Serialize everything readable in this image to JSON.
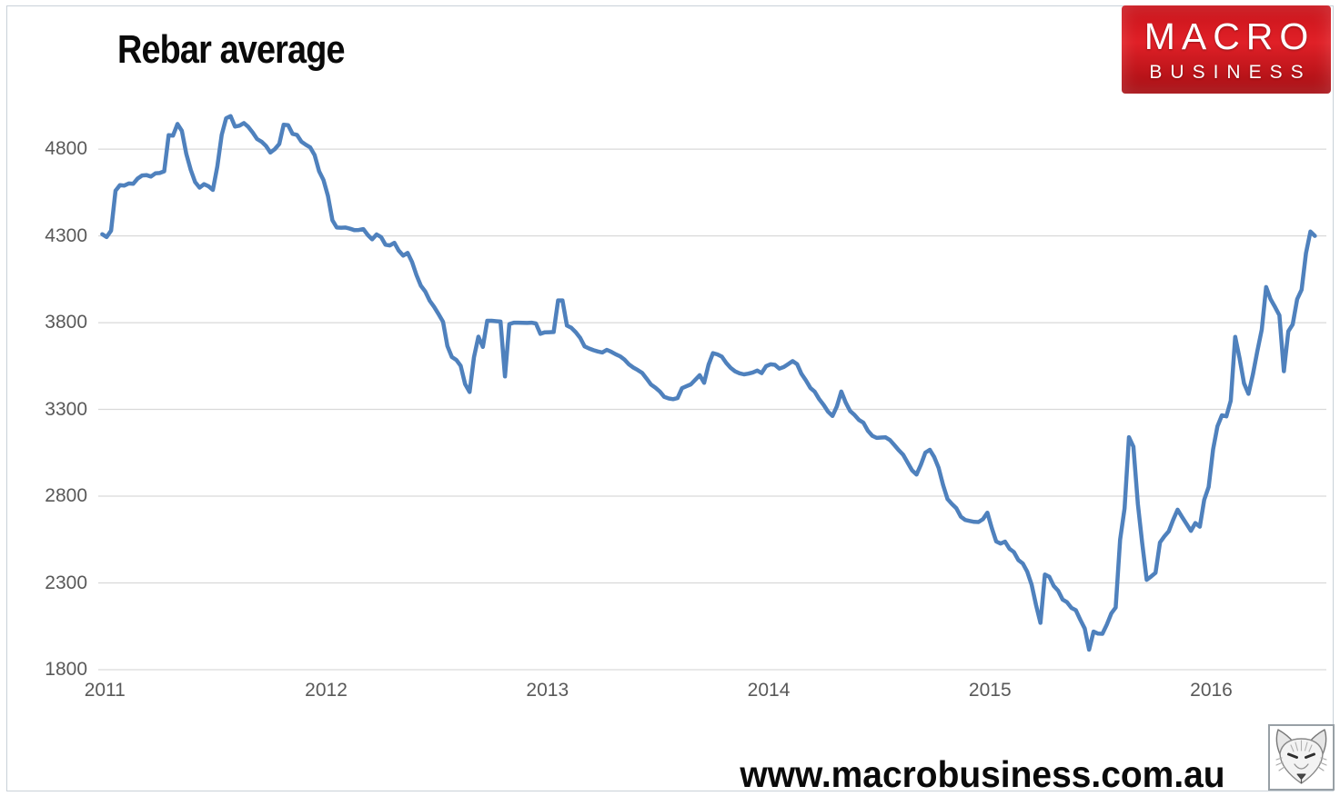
{
  "title": "Rebar average",
  "branding": {
    "logo_line1": "MACRO",
    "logo_line2": "BUSINESS",
    "url": "www.macrobusiness.com.au"
  },
  "colors": {
    "line": "#4F81BD",
    "gridline": "#D9D9D9",
    "axis_text": "#595959",
    "logo_red_top": "#c8131a",
    "logo_red_bottom": "#a50d12",
    "page_border": "#c9d1d8"
  },
  "chart_data": {
    "type": "line",
    "title": "Rebar average",
    "xlabel": "",
    "ylabel": "",
    "grid": "horizontal",
    "legend": "none",
    "x_ticks": [
      2011,
      2012,
      2013,
      2014,
      2015,
      2016
    ],
    "y_ticks": [
      1800,
      2300,
      2800,
      3300,
      3800,
      4300,
      4800
    ],
    "xlim": [
      2010.97,
      2016.52
    ],
    "ylim": [
      1800,
      5057
    ],
    "line_color": "#4F81BD",
    "line_width": 4.5,
    "series": [
      {
        "name": "Rebar average",
        "x_start": 2010.988,
        "x_step": 0.02,
        "values": [
          4310,
          4293,
          4330,
          4560,
          4592,
          4590,
          4602,
          4600,
          4630,
          4648,
          4650,
          4642,
          4660,
          4662,
          4672,
          4880,
          4878,
          4945,
          4905,
          4772,
          4680,
          4610,
          4578,
          4598,
          4586,
          4565,
          4700,
          4882,
          4978,
          4990,
          4930,
          4935,
          4950,
          4928,
          4895,
          4858,
          4843,
          4818,
          4780,
          4800,
          4830,
          4940,
          4938,
          4888,
          4882,
          4843,
          4825,
          4810,
          4765,
          4672,
          4622,
          4530,
          4390,
          4348,
          4347,
          4348,
          4341,
          4333,
          4334,
          4339,
          4305,
          4280,
          4308,
          4293,
          4249,
          4245,
          4260,
          4215,
          4186,
          4202,
          4150,
          4074,
          4013,
          3979,
          3926,
          3891,
          3849,
          3805,
          3665,
          3602,
          3585,
          3551,
          3445,
          3400,
          3600,
          3719,
          3660,
          3811,
          3811,
          3808,
          3806,
          3490,
          3792,
          3800,
          3800,
          3799,
          3798,
          3800,
          3795,
          3736,
          3744,
          3745,
          3746,
          3928,
          3928,
          3783,
          3770,
          3745,
          3712,
          3663,
          3651,
          3641,
          3634,
          3628,
          3643,
          3632,
          3618,
          3606,
          3587,
          3560,
          3541,
          3527,
          3510,
          3477,
          3443,
          3425,
          3403,
          3372,
          3363,
          3359,
          3365,
          3422,
          3433,
          3444,
          3471,
          3497,
          3453,
          3558,
          3624,
          3617,
          3604,
          3568,
          3539,
          3519,
          3508,
          3502,
          3506,
          3513,
          3524,
          3509,
          3549,
          3560,
          3557,
          3535,
          3544,
          3561,
          3578,
          3561,
          3505,
          3467,
          3424,
          3402,
          3359,
          3326,
          3287,
          3262,
          3317,
          3403,
          3339,
          3291,
          3268,
          3239,
          3223,
          3177,
          3148,
          3136,
          3138,
          3139,
          3123,
          3094,
          3064,
          3038,
          2993,
          2949,
          2925,
          2983,
          3051,
          3067,
          3025,
          2963,
          2864,
          2783,
          2755,
          2730,
          2682,
          2663,
          2657,
          2652,
          2651,
          2667,
          2705,
          2617,
          2539,
          2527,
          2538,
          2497,
          2478,
          2432,
          2412,
          2366,
          2290,
          2172,
          2070,
          2348,
          2335,
          2283,
          2255,
          2204,
          2189,
          2156,
          2143,
          2088,
          2037,
          1915,
          2020,
          2008,
          2007,
          2060,
          2124,
          2158,
          2550,
          2730,
          3140,
          3085,
          2755,
          2528,
          2318,
          2337,
          2358,
          2533,
          2568,
          2598,
          2665,
          2722,
          2680,
          2640,
          2600,
          2645,
          2624,
          2778,
          2853,
          3070,
          3203,
          3266,
          3260,
          3350,
          3718,
          3595,
          3450,
          3390,
          3500,
          3635,
          3760,
          4005,
          3935,
          3890,
          3842,
          3520,
          3750,
          3790,
          3935,
          3990,
          4200,
          4325,
          4300
        ]
      }
    ]
  }
}
